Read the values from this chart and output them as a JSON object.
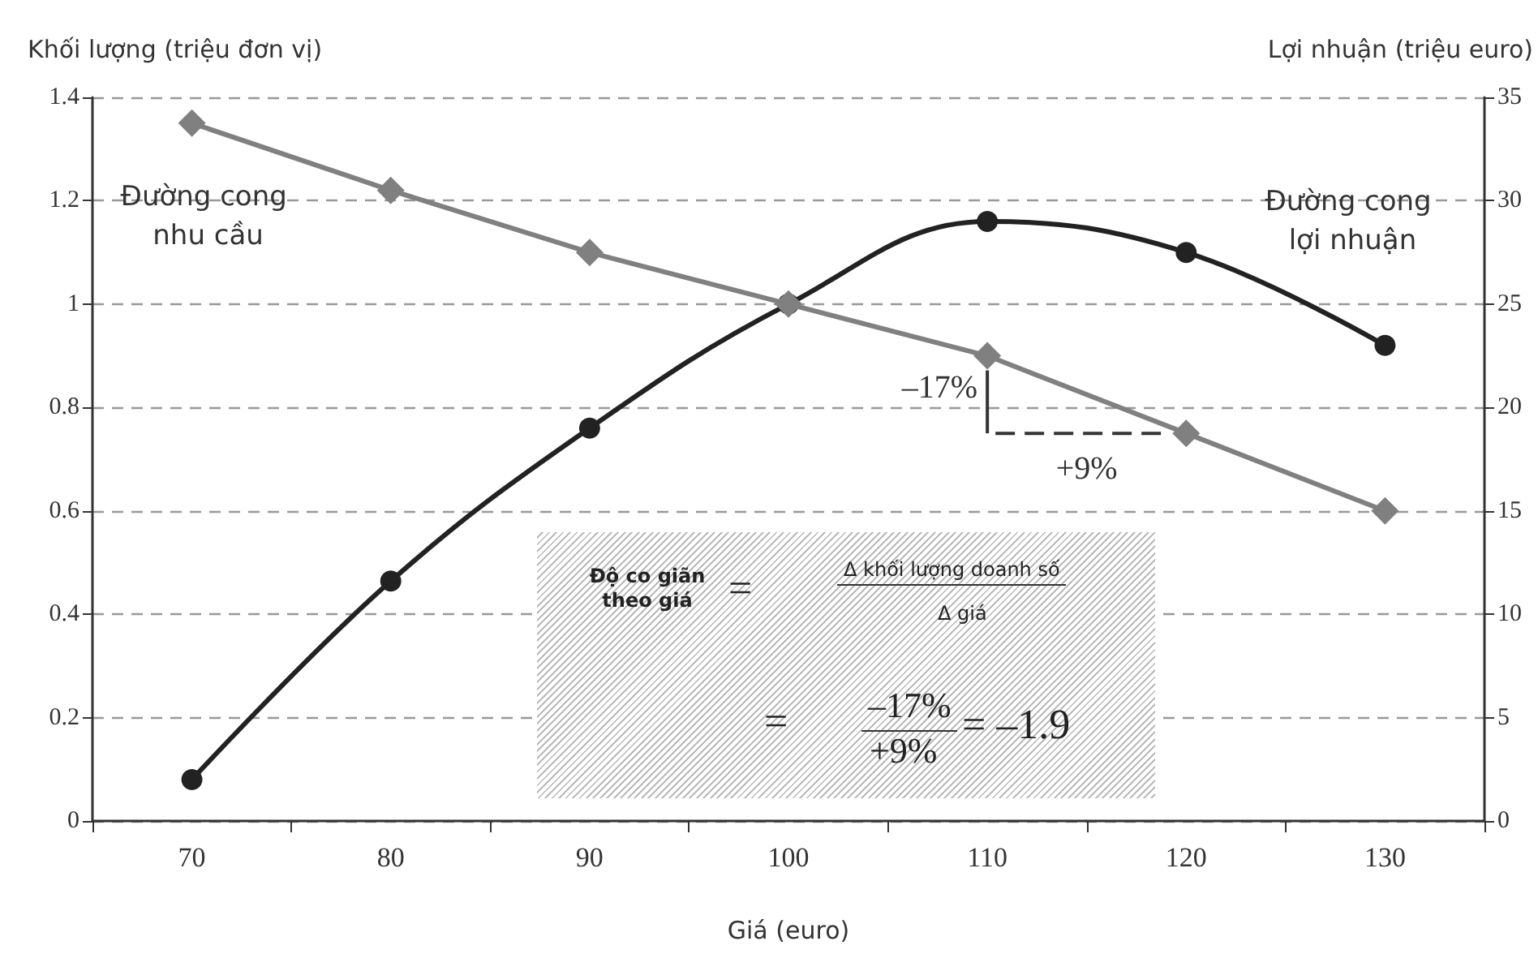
{
  "chart_data": {
    "type": "line",
    "xlabel": "Giá (euro)",
    "ylabel": "Khối lượng (triệu đơn vị)",
    "y2label": "Lợi nhuận (triệu euro)",
    "categories": [
      "70",
      "80",
      "90",
      "100",
      "110",
      "120",
      "130"
    ],
    "series": [
      {
        "color": "#808080",
        "marker": "diamond",
        "values": [
          1.35,
          1.22,
          1.1,
          1.0,
          0.9,
          0.75,
          0.6
        ]
      },
      {
        "color": "#222222",
        "marker": "circle",
        "axis": "y2",
        "values": [
          2,
          11.6,
          19,
          25,
          29,
          27.5,
          23
        ]
      }
    ],
    "ylim": [
      0,
      1.4
    ],
    "yticks": [
      0,
      0.2,
      0.4,
      0.6,
      0.8,
      1,
      1.2,
      1.4
    ],
    "y2lim": [
      0,
      35
    ],
    "y2ticks": [
      0,
      5,
      10,
      15,
      20,
      25,
      30,
      35
    ],
    "grid": "y",
    "line_style": "solid",
    "annotations": [
      "Đường cong nhu cầu",
      "Đường cong lợi nhuận",
      {
        "text": "–17%",
        "x": "110",
        "y": 0.9
      },
      {
        "text": "+9%",
        "x": "120",
        "y": 0.75
      },
      "Độ co giãn theo giá",
      "=",
      "Δ khối lượng doanh số",
      "Δ giá",
      "=",
      "–17%",
      "+9%",
      "= –1.9"
    ]
  }
}
